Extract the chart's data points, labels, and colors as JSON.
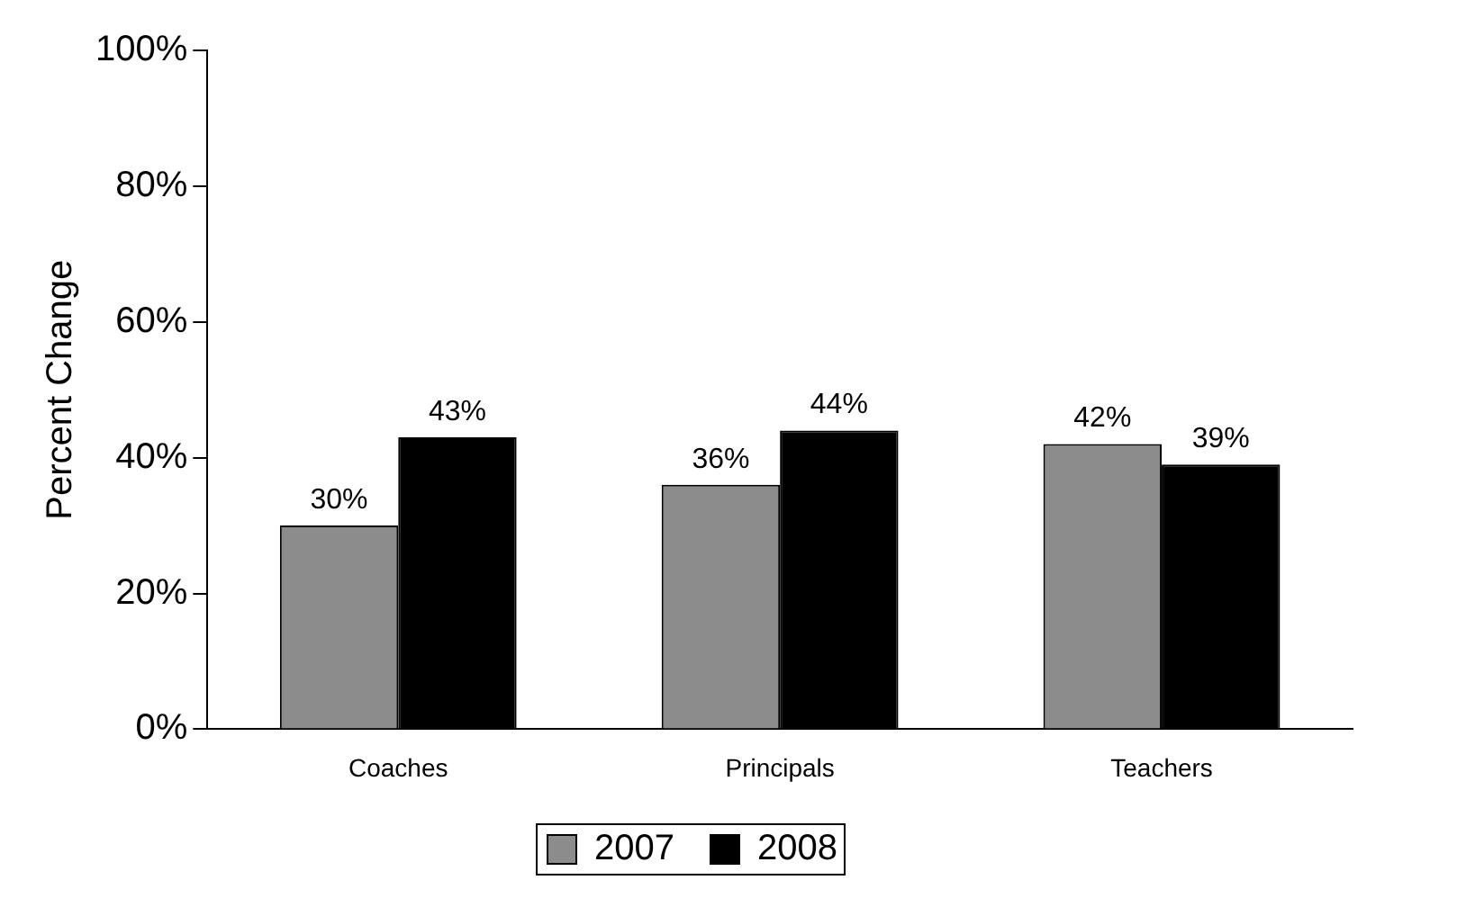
{
  "chart_data": {
    "type": "bar",
    "ylabel": "Percent Change",
    "categories": [
      "Coaches",
      "Principals",
      "Teachers"
    ],
    "series": [
      {
        "name": "2007",
        "color": "#8c8c8c",
        "values": [
          30,
          36,
          42
        ],
        "value_labels": [
          "30%",
          "36%",
          "42%"
        ]
      },
      {
        "name": "2008",
        "color": "#000000",
        "values": [
          43,
          44,
          39
        ],
        "value_labels": [
          "43%",
          "44%",
          "39%"
        ]
      }
    ],
    "ylim": [
      0,
      100
    ],
    "yticks": [
      {
        "value": 0,
        "label": "0%"
      },
      {
        "value": 20,
        "label": "20%"
      },
      {
        "value": 40,
        "label": "40%"
      },
      {
        "value": 60,
        "label": "60%"
      },
      {
        "value": 80,
        "label": "80%"
      },
      {
        "value": 100,
        "label": "100%"
      }
    ],
    "grid": false,
    "legend": "bottom"
  }
}
